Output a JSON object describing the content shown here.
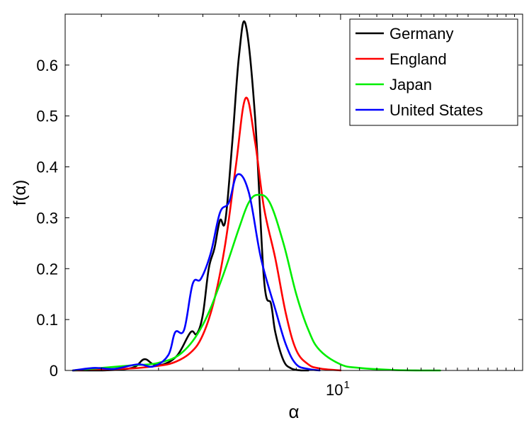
{
  "chart_data": {
    "type": "line",
    "xlabel": "α",
    "ylabel": "f(α)",
    "xscale": "log",
    "xlim": [
      2.5,
      25
    ],
    "ylim": [
      0,
      0.7
    ],
    "grid": false,
    "legend_position": "top-right",
    "x_ticks": [
      {
        "value": 10,
        "base": "10",
        "exp": "1"
      }
    ],
    "y_ticks": [
      {
        "value": 0,
        "label": "0"
      },
      {
        "value": 0.1,
        "label": "0.1"
      },
      {
        "value": 0.2,
        "label": "0.2"
      },
      {
        "value": 0.3,
        "label": "0.3"
      },
      {
        "value": 0.4,
        "label": "0.4"
      },
      {
        "value": 0.5,
        "label": "0.5"
      },
      {
        "value": 0.6,
        "label": "0.6"
      }
    ],
    "series": [
      {
        "name": "Germany",
        "color": "#000000",
        "x": [
          2.6,
          3.0,
          3.5,
          3.72,
          3.9,
          4.1,
          4.4,
          4.7,
          4.85,
          5.0,
          5.15,
          5.3,
          5.45,
          5.6,
          5.8,
          6.0,
          6.2,
          6.5,
          6.8,
          7.05,
          7.2,
          7.5,
          7.8,
          8.2,
          8.5
        ],
        "y": [
          0,
          0,
          0.005,
          0.022,
          0.012,
          0.012,
          0.03,
          0.075,
          0.072,
          0.11,
          0.2,
          0.24,
          0.295,
          0.295,
          0.45,
          0.62,
          0.68,
          0.5,
          0.18,
          0.13,
          0.075,
          0.02,
          0.004,
          0,
          0
        ]
      },
      {
        "name": "England",
        "color": "#ff0000",
        "x": [
          2.6,
          3.0,
          3.5,
          3.9,
          4.3,
          4.7,
          5.0,
          5.3,
          5.6,
          5.9,
          6.2,
          6.5,
          6.8,
          7.2,
          7.6,
          8.0,
          8.5,
          9.0,
          10.0
        ],
        "y": [
          0,
          0.002,
          0.004,
          0.008,
          0.015,
          0.035,
          0.07,
          0.14,
          0.25,
          0.4,
          0.535,
          0.45,
          0.32,
          0.22,
          0.11,
          0.04,
          0.012,
          0.004,
          0
        ]
      },
      {
        "name": "Japan",
        "color": "#00ee00",
        "x": [
          2.6,
          3.0,
          3.5,
          4.0,
          4.5,
          5.0,
          5.5,
          6.0,
          6.3,
          6.6,
          7.0,
          7.5,
          8.0,
          8.5,
          9.0,
          10.0,
          11.0,
          13.0,
          15.0,
          16.5
        ],
        "y": [
          0,
          0.005,
          0.01,
          0.015,
          0.035,
          0.09,
          0.18,
          0.28,
          0.33,
          0.345,
          0.33,
          0.25,
          0.15,
          0.08,
          0.04,
          0.012,
          0.005,
          0.001,
          0,
          0
        ]
      },
      {
        "name": "United States",
        "color": "#0000ff",
        "x": [
          2.6,
          2.9,
          3.2,
          3.6,
          3.9,
          4.2,
          4.35,
          4.55,
          4.75,
          4.95,
          5.2,
          5.45,
          5.7,
          5.95,
          6.3,
          6.7,
          7.2,
          7.6,
          8.0,
          8.5,
          9.0
        ],
        "y": [
          0,
          0.005,
          0.003,
          0.012,
          0.008,
          0.03,
          0.075,
          0.08,
          0.17,
          0.18,
          0.23,
          0.31,
          0.33,
          0.385,
          0.35,
          0.22,
          0.12,
          0.05,
          0.012,
          0.003,
          0
        ]
      }
    ]
  }
}
